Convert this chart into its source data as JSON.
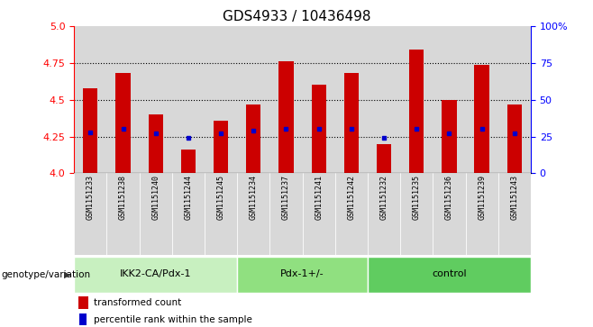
{
  "title": "GDS4933 / 10436498",
  "samples": [
    "GSM1151233",
    "GSM1151238",
    "GSM1151240",
    "GSM1151244",
    "GSM1151245",
    "GSM1151234",
    "GSM1151237",
    "GSM1151241",
    "GSM1151242",
    "GSM1151232",
    "GSM1151235",
    "GSM1151236",
    "GSM1151239",
    "GSM1151243"
  ],
  "bar_tops": [
    4.58,
    4.68,
    4.4,
    4.16,
    4.36,
    4.47,
    4.76,
    4.6,
    4.68,
    4.2,
    4.84,
    4.5,
    4.74,
    4.47
  ],
  "bar_bottoms": [
    4.0,
    4.0,
    4.0,
    4.0,
    4.0,
    4.0,
    4.0,
    4.0,
    4.0,
    4.0,
    4.0,
    4.0,
    4.0,
    4.0
  ],
  "blue_dots": [
    4.28,
    4.3,
    4.27,
    4.24,
    4.27,
    4.29,
    4.3,
    4.3,
    4.3,
    4.24,
    4.3,
    4.27,
    4.3,
    4.27
  ],
  "groups": [
    {
      "label": "IKK2-CA/Pdx-1",
      "start": 0,
      "end": 5,
      "color": "#c8f0c0"
    },
    {
      "label": "Pdx-1+/-",
      "start": 5,
      "end": 9,
      "color": "#90e080"
    },
    {
      "label": "control",
      "start": 9,
      "end": 14,
      "color": "#60cc60"
    }
  ],
  "ylim": [
    4.0,
    5.0
  ],
  "yticks": [
    4.0,
    4.25,
    4.5,
    4.75,
    5.0
  ],
  "right_yticks": [
    0,
    25,
    50,
    75,
    100
  ],
  "bar_color": "#cc0000",
  "dot_color": "#0000cc",
  "bg_color": "#d8d8d8",
  "white_bg": "#ffffff",
  "genotype_label": "genotype/variation",
  "legend_bar": "transformed count",
  "legend_dot": "percentile rank within the sample",
  "title_fontsize": 11,
  "tick_fontsize": 8,
  "sample_fontsize": 6
}
